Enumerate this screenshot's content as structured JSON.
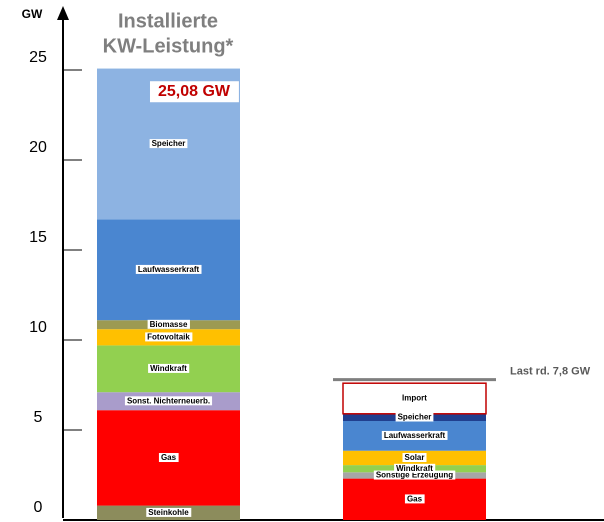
{
  "chart_data": {
    "type": "stacked_bar",
    "title_lines": [
      "Installierte",
      "KW-Leistung*"
    ],
    "y_label": "GW",
    "annotation": "25,08 GW",
    "ylim": [
      0,
      28
    ],
    "yticks": [
      0,
      5,
      10,
      15,
      20,
      25
    ],
    "load": {
      "value": 7.8,
      "label": "Last rd. 7,8 GW"
    },
    "bars": [
      {
        "segments": [
          {
            "name": "Steinkohle",
            "value": 0.8,
            "color": "#8c8c5c"
          },
          {
            "name": "Gas",
            "value": 5.3,
            "color": "#ff0000"
          },
          {
            "name": "Sonst. Nichterneuerb.",
            "value": 1.0,
            "color": "#a99ccb"
          },
          {
            "name": "Windkraft",
            "value": 2.6,
            "color": "#92d050"
          },
          {
            "name": "Fotovoltaik",
            "value": 0.9,
            "color": "#ffc000"
          },
          {
            "name": "Biomasse",
            "value": 0.5,
            "color": "#9c9a52"
          },
          {
            "name": "Laufwasserkraft",
            "value": 5.6,
            "color": "#4a86d0"
          },
          {
            "name": "Speicher",
            "value": 8.38,
            "color": "#8db3e2"
          }
        ]
      },
      {
        "segments": [
          {
            "name": "Gas",
            "value": 2.3,
            "color": "#ff0000"
          },
          {
            "name": "Sonstige Erzeugung",
            "value": 0.35,
            "color": "#a6a6a6"
          },
          {
            "name": "Windkraft",
            "value": 0.4,
            "color": "#92d050"
          },
          {
            "name": "Solar",
            "value": 0.8,
            "color": "#ffc000"
          },
          {
            "name": "Laufwasserkraft",
            "value": 1.65,
            "color": "#4a86d0"
          },
          {
            "name": "Speicher",
            "value": 0.4,
            "color": "#203f8f"
          },
          {
            "name": "Import",
            "value": 1.7,
            "color": "#ffffff"
          }
        ]
      }
    ]
  }
}
